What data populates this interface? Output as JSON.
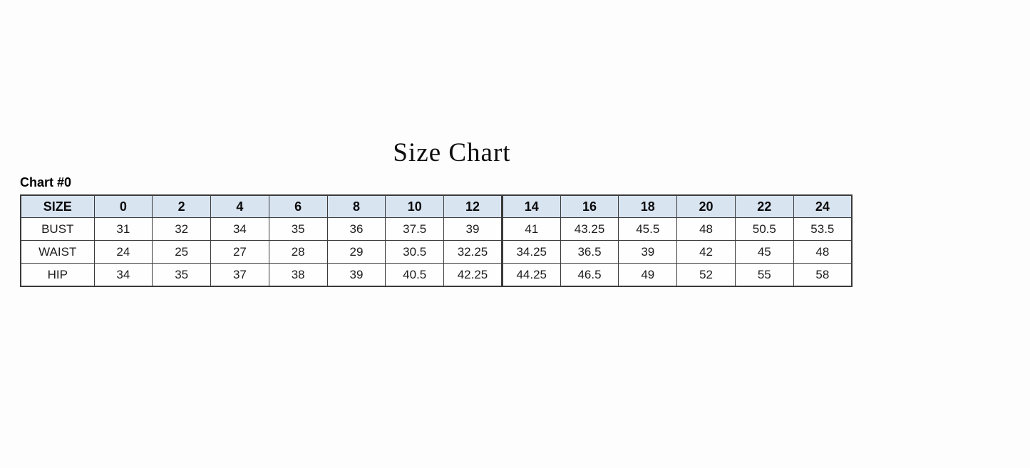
{
  "page": {
    "title": "Size Chart",
    "chart_label": "Chart #0"
  },
  "colors": {
    "header_bg": "#d9e4f1",
    "border": "#3a3a3a",
    "page_bg": "#fdfdfd"
  },
  "chart_data": {
    "type": "table",
    "title": "Size Chart",
    "label": "Chart #0",
    "header": [
      "SIZE",
      "0",
      "2",
      "4",
      "6",
      "8",
      "10",
      "12",
      "14",
      "16",
      "18",
      "20",
      "22",
      "24"
    ],
    "thick_divider_after_column": "12",
    "rows": [
      {
        "label": "BUST",
        "values": [
          "31",
          "32",
          "34",
          "35",
          "36",
          "37.5",
          "39",
          "41",
          "43.25",
          "45.5",
          "48",
          "50.5",
          "53.5"
        ]
      },
      {
        "label": "WAIST",
        "values": [
          "24",
          "25",
          "27",
          "28",
          "29",
          "30.5",
          "32.25",
          "34.25",
          "36.5",
          "39",
          "42",
          "45",
          "48"
        ]
      },
      {
        "label": "HIP",
        "values": [
          "34",
          "35",
          "37",
          "38",
          "39",
          "40.5",
          "42.25",
          "44.25",
          "46.5",
          "49",
          "52",
          "55",
          "58"
        ]
      }
    ]
  }
}
